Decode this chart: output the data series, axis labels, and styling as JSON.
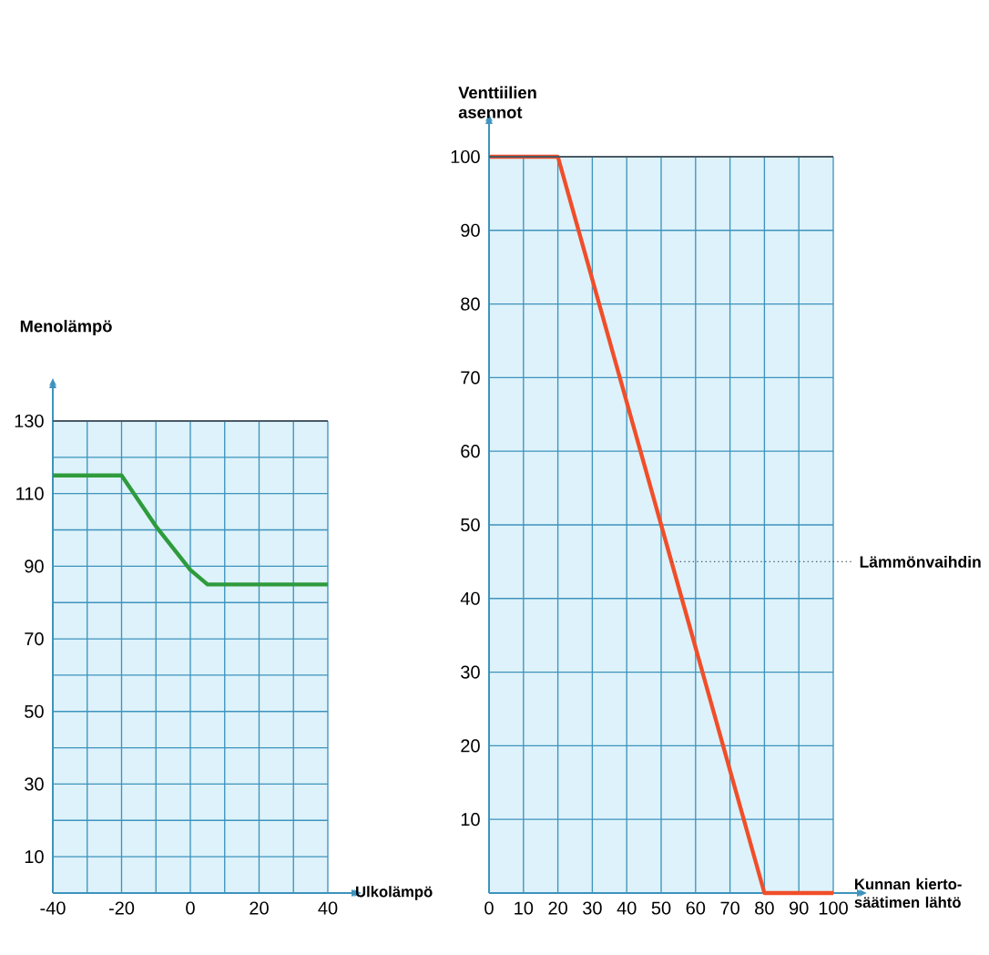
{
  "chart_data": [
    {
      "type": "line",
      "xlabel": "Ulkolämpö",
      "ylabel": "Menolämpö",
      "x": [
        -40,
        -20,
        -10,
        0,
        5,
        40
      ],
      "series": [
        {
          "color": "#2e9b3c",
          "values": [
            115,
            115,
            101,
            89,
            85,
            85
          ]
        }
      ],
      "xlim": [
        -40,
        40
      ],
      "ylim": [
        0,
        130
      ],
      "xticks": [
        -40,
        {
          "value": -30,
          "label": null
        },
        -20,
        {
          "value": -10,
          "label": null
        },
        0,
        {
          "value": 10,
          "label": null
        },
        20,
        {
          "value": 30,
          "label": null
        },
        40
      ],
      "yticks": [
        10,
        {
          "value": 20,
          "label": null
        },
        30,
        {
          "value": 40,
          "label": null
        },
        50,
        {
          "value": 60,
          "label": null
        },
        70,
        {
          "value": 80,
          "label": null
        },
        90,
        {
          "value": 100,
          "label": null
        },
        110,
        {
          "value": 120,
          "label": null
        },
        130
      ],
      "grid": true
    },
    {
      "type": "line",
      "xlabel": "Kunnan kierto-säätimen lähtö",
      "ylabel": "Venttiilien asennot",
      "x": [
        0,
        20,
        80,
        100
      ],
      "series": [
        {
          "color": "#f04e2a",
          "values": [
            100,
            100,
            0,
            0
          ]
        }
      ],
      "xlim": [
        0,
        100
      ],
      "ylim": [
        0,
        100
      ],
      "xticks": [
        0,
        10,
        20,
        30,
        40,
        50,
        60,
        70,
        80,
        90,
        100
      ],
      "yticks": [
        10,
        20,
        30,
        40,
        50,
        60,
        70,
        80,
        90,
        100
      ],
      "annotations": [
        {
          "text": "Lämmönvaihdin",
          "x": 53,
          "y": 45
        }
      ],
      "grid": true
    }
  ]
}
